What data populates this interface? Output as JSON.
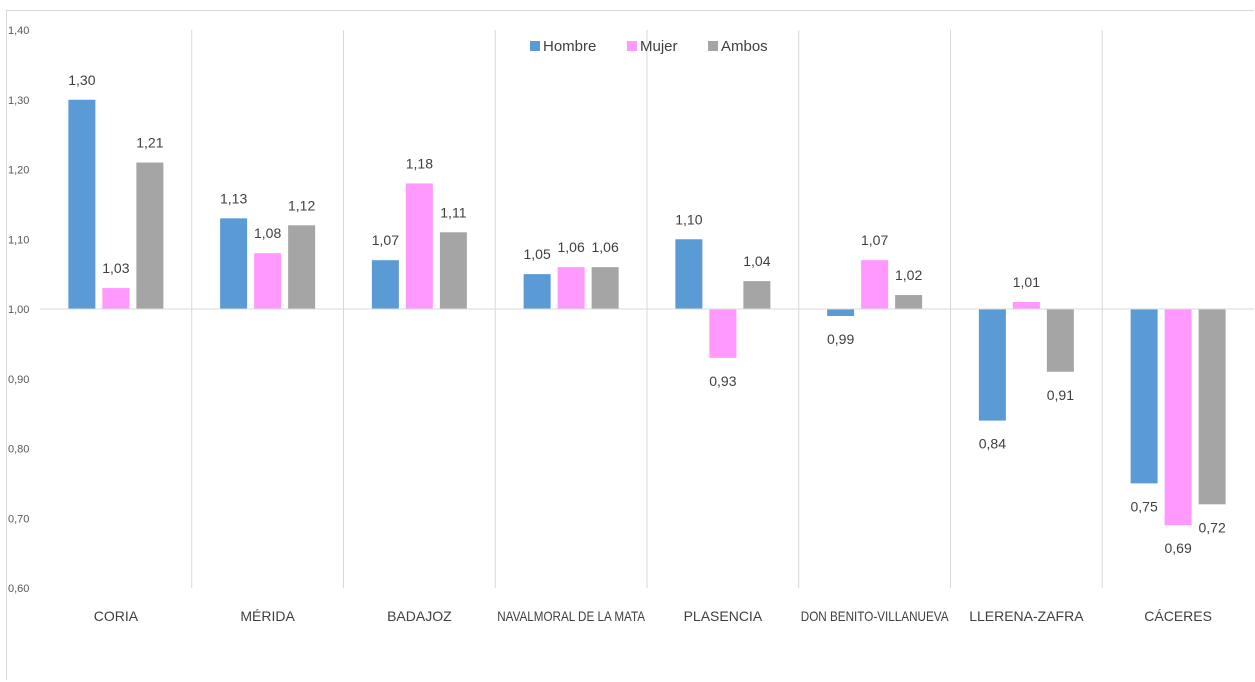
{
  "chart_data": {
    "type": "bar",
    "categories": [
      "CORIA",
      "MÉRIDA",
      "BADAJOZ",
      "NAVALMORAL DE LA MATA",
      "PLASENCIA",
      "DON BENITO-VILLANUEVA",
      "LLERENA-ZAFRA",
      "CÁCERES"
    ],
    "series": [
      {
        "name": "Hombre",
        "color": "#5b9bd5",
        "values": [
          1.3,
          1.13,
          1.07,
          1.05,
          1.1,
          0.99,
          0.84,
          0.75
        ],
        "labels": [
          "1,30",
          "1,13",
          "1,07",
          "1,05",
          "1,10",
          "0,99",
          "0,84",
          "0,75"
        ]
      },
      {
        "name": "Mujer",
        "color": "#ff99ff",
        "values": [
          1.03,
          1.08,
          1.18,
          1.06,
          0.93,
          1.07,
          1.01,
          0.69
        ],
        "labels": [
          "1,03",
          "1,08",
          "1,18",
          "1,06",
          "0,93",
          "1,07",
          "1,01",
          "0,69"
        ]
      },
      {
        "name": "Ambos",
        "color": "#a5a5a5",
        "values": [
          1.21,
          1.12,
          1.11,
          1.06,
          1.04,
          1.02,
          0.91,
          0.72
        ],
        "labels": [
          "1,21",
          "1,12",
          "1,11",
          "1,06",
          "1,04",
          "1,02",
          "0,91",
          "0,72"
        ]
      }
    ],
    "baseline": 1.0,
    "ylim": [
      0.6,
      1.4
    ],
    "yticks": [
      {
        "value": 1.4,
        "label": "1,40"
      },
      {
        "value": 1.3,
        "label": "1,30"
      },
      {
        "value": 1.2,
        "label": "1,20"
      },
      {
        "value": 1.1,
        "label": "1,10"
      },
      {
        "value": 1.0,
        "label": "1,00"
      },
      {
        "value": 0.9,
        "label": "0,90"
      },
      {
        "value": 0.8,
        "label": "0,80"
      },
      {
        "value": 0.7,
        "label": "0,70"
      },
      {
        "value": 0.6,
        "label": "0,60"
      }
    ],
    "title": "",
    "xlabel": "",
    "ylabel": "",
    "legend": "top-center",
    "grid": "vertical category separators"
  }
}
